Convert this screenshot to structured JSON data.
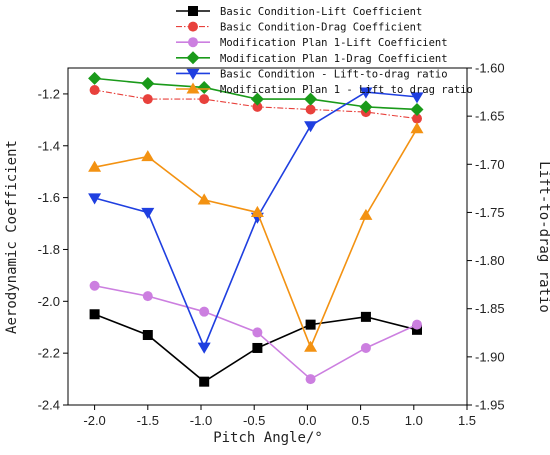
{
  "chart_data": {
    "type": "line",
    "title": "",
    "xlabel": "Pitch Angle/°",
    "ylabel_left": "Aerodynamic Coefficient",
    "ylabel_right": "Lift-to-drag ratio",
    "xlim": [
      -2.25,
      1.5
    ],
    "xticks": [
      -2.0,
      -1.5,
      -1.0,
      -0.5,
      0.0,
      0.5,
      1.0,
      1.5
    ],
    "xtick_labels": [
      "-2.0",
      "-1.5",
      "-1.0",
      "-0.5",
      "0.0",
      "0.5",
      "1.0",
      "1.5"
    ],
    "ylim_left": [
      -2.4,
      -1.1
    ],
    "yticks_left": [
      -2.4,
      -2.2,
      -2.0,
      -1.8,
      -1.6,
      -1.4,
      -1.2
    ],
    "ytick_labels_left": [
      "-2.4",
      "-2.2",
      "-2.0",
      "-1.8",
      "-1.6",
      "-1.4",
      "-1.2"
    ],
    "ylim_right": [
      -1.95,
      -1.6
    ],
    "yticks_right": [
      -1.95,
      -1.9,
      -1.85,
      -1.8,
      -1.75,
      -1.7,
      -1.65,
      -1.6
    ],
    "ytick_labels_right": [
      "-1.95",
      "-1.90",
      "-1.85",
      "-1.80",
      "-1.75",
      "-1.70",
      "-1.65",
      "-1.60"
    ],
    "grid": false,
    "legend_position": "top-center",
    "series": [
      {
        "name": "Basic Condition-Lift Coefficient",
        "axis": "left",
        "color": "#000000",
        "marker": "square",
        "line": "solid",
        "x": [
          -2.0,
          -1.5,
          -0.97,
          -0.47,
          0.03,
          0.55,
          1.03
        ],
        "y": [
          -2.05,
          -2.13,
          -2.31,
          -2.18,
          -2.09,
          -2.06,
          -2.11
        ]
      },
      {
        "name": "Basic Condition-Drag Coefficient",
        "axis": "left",
        "color": "#e8413c",
        "marker": "circle",
        "line": "dashdot",
        "x": [
          -2.0,
          -1.5,
          -0.97,
          -0.47,
          0.03,
          0.55,
          1.03
        ],
        "y": [
          -1.185,
          -1.22,
          -1.22,
          -1.25,
          -1.26,
          -1.27,
          -1.295
        ]
      },
      {
        "name": "Modification Plan 1-Lift Coefficient",
        "axis": "left",
        "color": "#cc7fe0",
        "marker": "circle",
        "line": "solid",
        "x": [
          -2.0,
          -1.5,
          -0.97,
          -0.47,
          0.03,
          0.55,
          1.03
        ],
        "y": [
          -1.94,
          -1.98,
          -2.04,
          -2.12,
          -2.3,
          -2.18,
          -2.09
        ]
      },
      {
        "name": "Modification Plan 1-Drag Coefficient",
        "axis": "left",
        "color": "#1a9a1a",
        "marker": "diamond",
        "line": "solid",
        "x": [
          -2.0,
          -1.5,
          -0.97,
          -0.47,
          0.03,
          0.55,
          1.03
        ],
        "y": [
          -1.14,
          -1.16,
          -1.175,
          -1.22,
          -1.22,
          -1.25,
          -1.26
        ]
      },
      {
        "name": "Basic Condition - Lift-to-drag ratio",
        "axis": "right",
        "color": "#1f3fe0",
        "marker": "triangle-down",
        "line": "solid",
        "x": [
          -2.0,
          -1.5,
          -0.97,
          -0.47,
          0.03,
          0.55,
          1.03
        ],
        "y": [
          -1.735,
          -1.75,
          -1.89,
          -1.755,
          -1.66,
          -1.625,
          -1.63
        ]
      },
      {
        "name": "Modification Plan 1 - Lift to drag ratio",
        "axis": "right",
        "color": "#f39212",
        "marker": "triangle-up",
        "line": "solid",
        "x": [
          -2.0,
          -1.5,
          -0.97,
          -0.47,
          0.03,
          0.55,
          1.03
        ],
        "y": [
          -1.703,
          -1.692,
          -1.737,
          -1.75,
          -1.89,
          -1.753,
          -1.663
        ]
      }
    ]
  }
}
